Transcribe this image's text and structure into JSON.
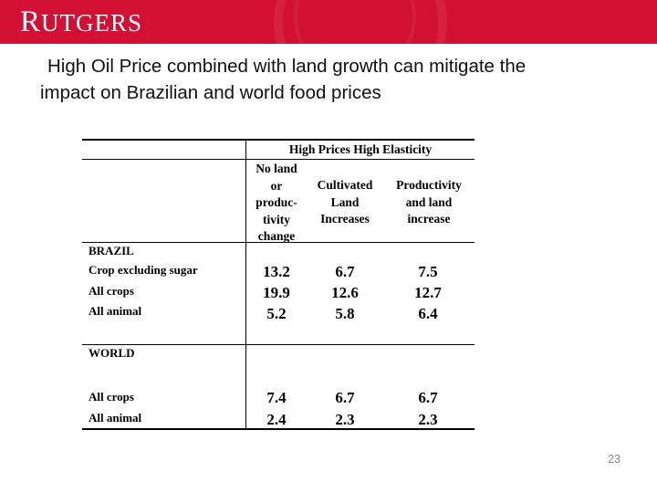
{
  "header": {
    "logo_text": "RUTGERS"
  },
  "slide": {
    "title_line1": "High Oil Price combined with land growth can mitigate the",
    "title_line2": "impact on Brazilian and world food prices",
    "page_number": "23"
  },
  "table": {
    "scenario_header": "High Prices High Elasticity",
    "columns": [
      [
        "No land",
        "or",
        "produc-",
        "tivity",
        "change"
      ],
      [
        "Cultivated",
        "Land",
        "Increases"
      ],
      [
        "Productivity",
        "and land",
        "increase"
      ]
    ],
    "sections": [
      {
        "name": "BRAZIL",
        "rows": [
          {
            "label": "Crop excluding sugar",
            "values": [
              "13.2",
              "6.7",
              "7.5"
            ]
          },
          {
            "label": "All crops",
            "values": [
              "19.9",
              "12.6",
              "12.7"
            ]
          },
          {
            "label": "All animal",
            "values": [
              "5.2",
              "5.8",
              "6.4"
            ]
          }
        ]
      },
      {
        "name": "WORLD",
        "rows": [
          {
            "label": "All crops",
            "values": [
              "7.4",
              "6.7",
              "6.7"
            ]
          },
          {
            "label": "All animal",
            "values": [
              "2.4",
              "2.3",
              "2.3"
            ]
          }
        ]
      }
    ]
  }
}
